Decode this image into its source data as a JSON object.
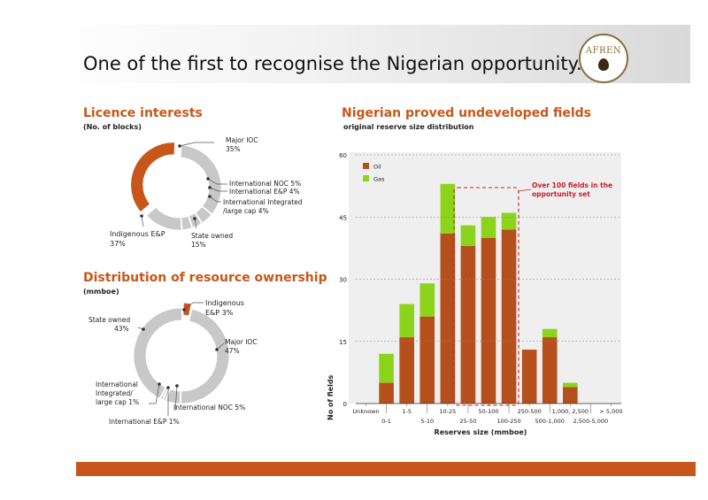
{
  "header": {
    "title": "One of the first to recognise the Nigerian opportunity...",
    "logo_text": "AFREN"
  },
  "licence": {
    "title": "Licence interests",
    "subtitle": "(No. of blocks)",
    "labels": {
      "major_ioc": "Major IOC",
      "major_ioc_pct": "35%",
      "intl_noc": "International NOC  5%",
      "intl_ep": "International E&P  4%",
      "intl_integrated": "International Integrated",
      "intl_integrated2": "/large cap  4%",
      "state_owned": "State owned",
      "state_owned_pct": "15%",
      "indigenous": "Indigenous E&P",
      "indigenous_pct": "37%"
    }
  },
  "resource": {
    "title": "Distribution of resource ownership",
    "subtitle": "(mmboe)",
    "labels": {
      "indigenous": "Indigenous",
      "indigenous2": "E&P 3%",
      "state_owned": "State owned",
      "state_owned_pct": "43%",
      "major_ioc": "Major IOC",
      "major_ioc_pct": "47%",
      "intl_integrated": "International",
      "intl_integrated2": "Integrated/",
      "intl_integrated3": "large cap  1%",
      "intl_ep": "International E&P  1%",
      "intl_noc": "International NOC  5%"
    }
  },
  "fields": {
    "title": "Nigerian proved undeveloped fields",
    "subtitle": "original reserve size distribution",
    "callout": "Over 100 fields in the",
    "callout2": "opportunity set"
  },
  "chart_data": [
    {
      "type": "pie",
      "title": "Licence interests",
      "subtitle": "(No. of blocks)",
      "categories": [
        "Major IOC",
        "International NOC",
        "International E&P",
        "International Integrated /large cap",
        "State owned",
        "Indigenous E&P"
      ],
      "values": [
        35,
        5,
        4,
        4,
        15,
        37
      ],
      "colors": {
        "Indigenous E&P": "#c8561a",
        "other": "#c8c8c8"
      }
    },
    {
      "type": "pie",
      "title": "Distribution of resource ownership",
      "subtitle": "(mmboe)",
      "categories": [
        "Indigenous E&P",
        "Major IOC",
        "International NOC",
        "International E&P",
        "International Integrated/ large cap",
        "State owned"
      ],
      "values": [
        3,
        47,
        5,
        1,
        1,
        43
      ],
      "colors": {
        "Indigenous E&P": "#c8561a",
        "other": "#c8c8c8"
      }
    },
    {
      "type": "bar",
      "stacked": true,
      "title": "Nigerian proved undeveloped fields",
      "subtitle": "original reserve size distribution",
      "xlabel": "Reserves size (mmboe)",
      "ylabel": "No of fields",
      "ylim": [
        0,
        60
      ],
      "yticks": [
        0,
        15,
        30,
        45,
        60
      ],
      "categories": [
        "Unknown",
        "0-1",
        "1-5",
        "5-10",
        "10-25",
        "25-50",
        "50-100",
        "100-250",
        "250-500",
        "500-1,000",
        "1,000, 2,500",
        "2,500-5,000",
        "> 5,000"
      ],
      "series": [
        {
          "name": "Oil",
          "color": "#b5501c",
          "values": [
            0,
            5,
            16,
            21,
            41,
            38,
            40,
            42,
            13,
            16,
            4,
            0,
            0
          ]
        },
        {
          "name": "Gas",
          "color": "#8cd41c",
          "values": [
            0,
            7,
            8,
            8,
            12,
            5,
            5,
            4,
            0,
            2,
            1,
            0,
            0
          ]
        }
      ],
      "grid": true,
      "legend": "top-left",
      "annotation": "Over 100 fields in the opportunity set"
    }
  ]
}
